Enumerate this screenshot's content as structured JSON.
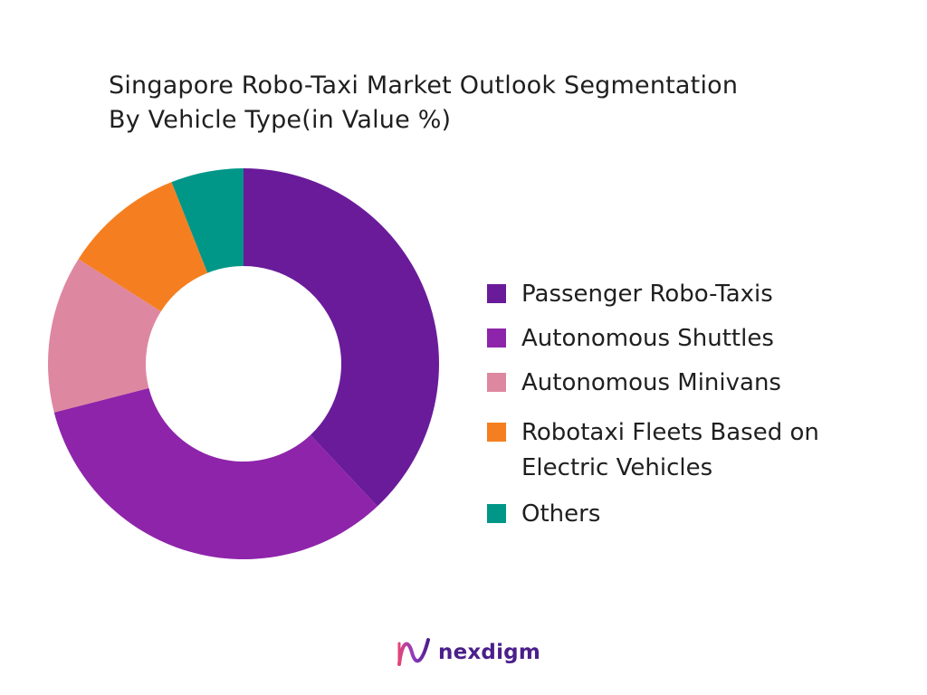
{
  "chart_data": {
    "type": "pie",
    "donut": true,
    "title_lines": [
      "Singapore Robo-Taxi Market Outlook Segmentation",
      "By Vehicle Type(in Value %)"
    ],
    "series": [
      {
        "name": "Passenger Robo-Taxis",
        "value": 38,
        "color": "#6a1b9a"
      },
      {
        "name": "Autonomous Shuttles",
        "value": 33,
        "color": "#8e24aa"
      },
      {
        "name": "Autonomous Minivans",
        "value": 13,
        "color": "#de87a0"
      },
      {
        "name": "Robotaxi Fleets Based on Electric Vehicles",
        "value": 10,
        "color": "#f57f20"
      },
      {
        "name": "Others",
        "value": 6,
        "color": "#009688"
      }
    ],
    "legend_position": "right",
    "legend_labels": [
      [
        "Passenger Robo-Taxis"
      ],
      [
        "Autonomous Shuttles"
      ],
      [
        "Autonomous Minivans"
      ],
      [
        "Robotaxi Fleets Based on",
        "Electric Vehicles"
      ],
      [
        "Others"
      ]
    ]
  },
  "brand": {
    "name": "nexdigm",
    "logo_icon": "nexdigm-wave-icon",
    "color": "#4b1f8a"
  }
}
